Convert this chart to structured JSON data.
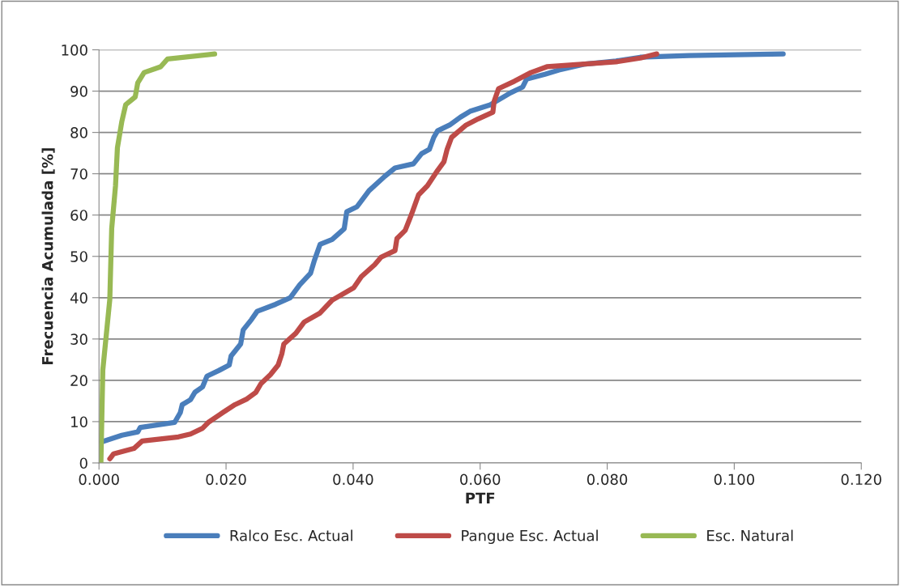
{
  "chart_data": {
    "type": "line",
    "xlabel": "PTF",
    "ylabel": "Frecuencia Acumulada [%]",
    "xlim": [
      0,
      0.12
    ],
    "xticks": [
      {
        "value": 0,
        "label": "0.000"
      },
      {
        "value": 0.02,
        "label": "0.020"
      },
      {
        "value": 0.04,
        "label": "0.040"
      },
      {
        "value": 0.06,
        "label": "0.060"
      },
      {
        "value": 0.08,
        "label": "0.080"
      },
      {
        "value": 0.1,
        "label": "0.100"
      },
      {
        "value": 0.12,
        "label": "0.120"
      }
    ],
    "ylim": [
      0,
      100
    ],
    "yticks": [
      0,
      10,
      20,
      30,
      40,
      50,
      60,
      70,
      80,
      90,
      100
    ],
    "grid": "y",
    "legend": "bottom",
    "marker": "none",
    "line_style": "solid",
    "series": [
      {
        "name": "Ralco Esc. Actual",
        "color": "#4a7ebb",
        "x": [
          0.0004,
          0.0036,
          0.0061,
          0.0065,
          0.0119,
          0.0128,
          0.0131,
          0.0144,
          0.0151,
          0.0163,
          0.017,
          0.0189,
          0.0205,
          0.0208,
          0.0223,
          0.0227,
          0.024,
          0.0249,
          0.0278,
          0.0301,
          0.0316,
          0.0333,
          0.0339,
          0.0348,
          0.0367,
          0.0386,
          0.039,
          0.0406,
          0.0425,
          0.045,
          0.0466,
          0.0495,
          0.0508,
          0.052,
          0.0527,
          0.0533,
          0.0552,
          0.0569,
          0.0584,
          0.0616,
          0.0648,
          0.0667,
          0.0673,
          0.0702,
          0.0724,
          0.0763,
          0.0814,
          0.0852,
          0.0929,
          0.1077
        ],
        "values": [
          5.1,
          6.7,
          7.5,
          8.6,
          9.8,
          12.2,
          14.1,
          15.3,
          17.1,
          18.4,
          21,
          22.4,
          23.7,
          25.9,
          28.8,
          32.2,
          34.7,
          36.7,
          38.4,
          40,
          43.1,
          45.9,
          49,
          52.9,
          54.1,
          56.7,
          60.8,
          62,
          65.9,
          69.4,
          71.4,
          72.4,
          74.9,
          75.9,
          78.8,
          80.4,
          81.8,
          83.7,
          85.1,
          86.7,
          89.6,
          91,
          92.9,
          94.1,
          95.1,
          96.5,
          97.3,
          98.2,
          98.6,
          99
        ]
      },
      {
        "name": "Pangue Esc. Actual",
        "color": "#be4b48",
        "x": [
          0.0017,
          0.0023,
          0.0055,
          0.0068,
          0.0125,
          0.0144,
          0.0163,
          0.0172,
          0.0195,
          0.0214,
          0.0233,
          0.0247,
          0.0255,
          0.027,
          0.0282,
          0.0288,
          0.0291,
          0.031,
          0.0323,
          0.0348,
          0.0367,
          0.0401,
          0.0413,
          0.0434,
          0.0444,
          0.0466,
          0.0469,
          0.0482,
          0.0492,
          0.0503,
          0.0517,
          0.0533,
          0.0543,
          0.0548,
          0.0555,
          0.0578,
          0.0597,
          0.062,
          0.0622,
          0.0629,
          0.0654,
          0.068,
          0.0705,
          0.0814,
          0.0852,
          0.0878
        ],
        "values": [
          1,
          2.2,
          3.5,
          5.3,
          6.3,
          7,
          8.4,
          9.8,
          12.2,
          14.1,
          15.5,
          17.1,
          19.2,
          21.4,
          23.7,
          26.5,
          28.8,
          31.4,
          34.1,
          36.3,
          39.4,
          42.4,
          45.1,
          48,
          49.8,
          51.4,
          54.3,
          56.3,
          60.2,
          64.9,
          67.1,
          70.8,
          72.9,
          75.9,
          78.8,
          81.8,
          83.3,
          84.9,
          87.5,
          90.6,
          92.4,
          94.5,
          95.9,
          97.1,
          98,
          99
        ]
      },
      {
        "name": "Esc. Natural",
        "color": "#98b954",
        "x": [
          0.0003,
          0.0006,
          0.0017,
          0.002,
          0.0026,
          0.0029,
          0.0036,
          0.0042,
          0.0057,
          0.0061,
          0.0071,
          0.0097,
          0.0108,
          0.0182
        ],
        "values": [
          0,
          22.5,
          39.6,
          56.7,
          67.1,
          76.3,
          82.7,
          86.7,
          88.6,
          92,
          94.5,
          95.9,
          97.8,
          99
        ]
      }
    ]
  }
}
